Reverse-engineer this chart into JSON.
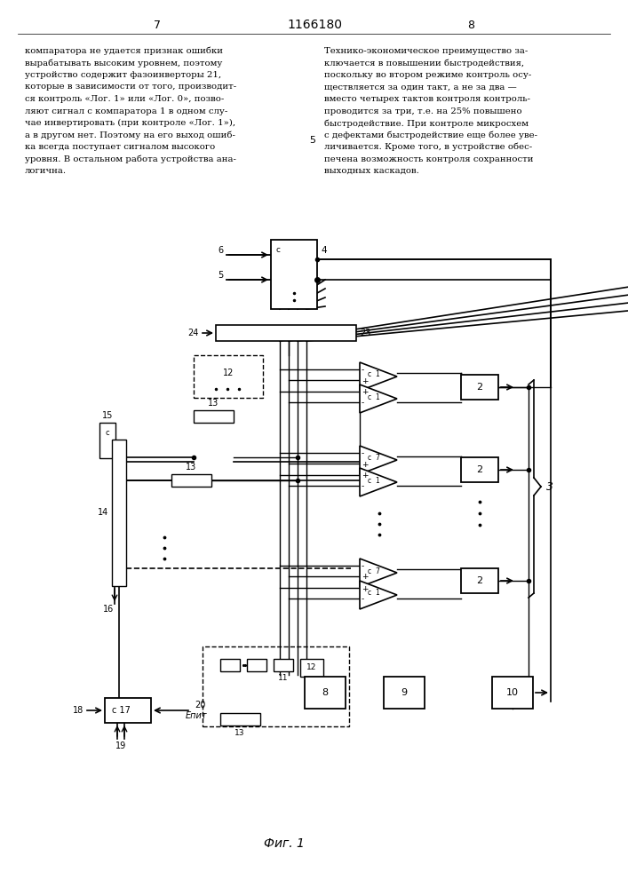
{
  "title": "1166180",
  "page_left": "7",
  "page_right": "8",
  "fig_label": "Фиг. 1",
  "bg_color": "#ffffff",
  "line_color": "#000000",
  "text_color": "#000000",
  "left_text": "компаратора не удается признак ошибки\nвырабатывать высоким уровнем, поэтому\nустройство содержит фазоинверторы 21,\nкоторые в зависимости от того, производит-\nся контроль «Лог. 1» или «Лог. 0», позво-\nляют сигнал с компаратора 1 в одном слу-\nчае инвертировать (при контроле «Лог. 1»),\nа в другом нет. Поэтому на его выход ошиб-\nка всегда поступает сигналом высокого\nуровня. В остальном работа устройства ана-\nлогична.",
  "right_text": "Технико-экономическое преимущество за-\nключается в повышении быстродействия,\nпоскольку во втором режиме контроль осу-\nществляется за один такт, а не за два —\nвместо четырех тактов контроля контроль-\nпроводится за три, т.е. на 25% повышено\nбыстродействие. При контроле микросхем\nс дефектами быстродействие еще более уве-\nличивается. Кроме того, в устройстве обес-\nпечена возможность контроля сохранности\nвыходных каскадов."
}
